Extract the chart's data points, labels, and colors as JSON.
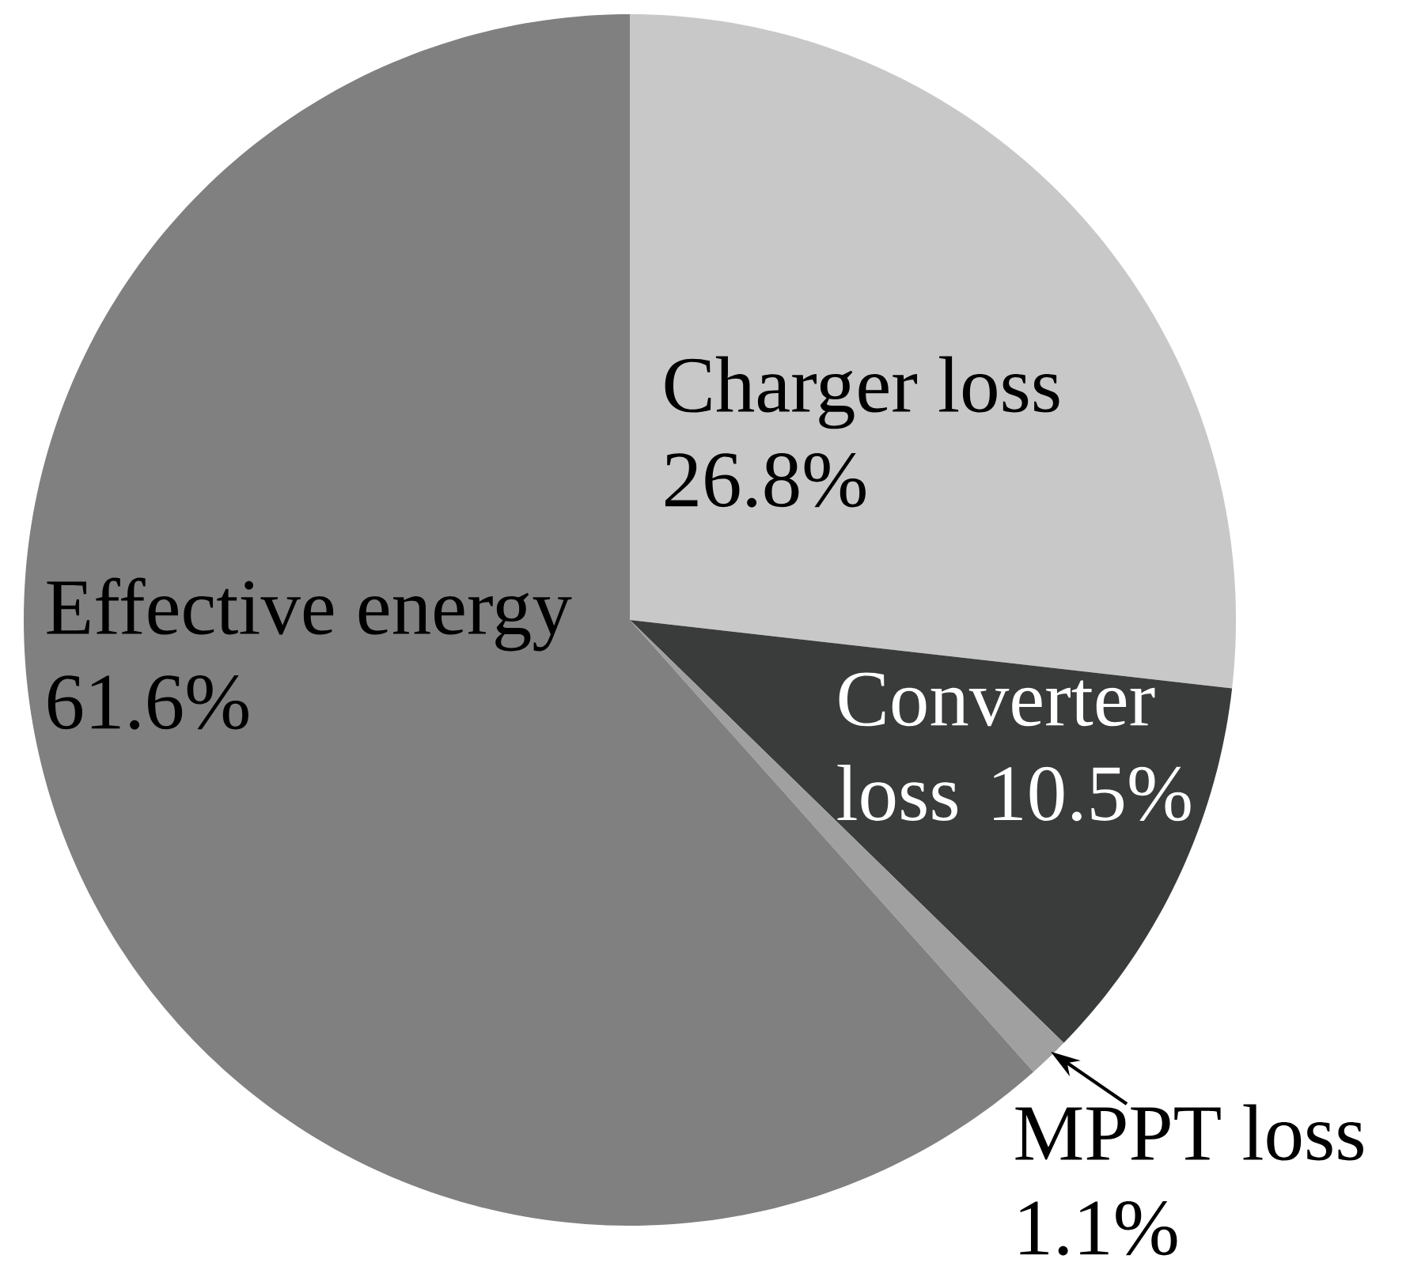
{
  "chart_data": {
    "type": "pie",
    "categories": [
      "Charger loss",
      "Converter loss",
      "MPPT loss",
      "Effective energy"
    ],
    "values": [
      26.8,
      10.5,
      1.1,
      61.6
    ],
    "value_labels": [
      "26.8%",
      "10.5%",
      "1.1%",
      "61.6%"
    ],
    "colors": [
      "#c8c8c8",
      "#3a3b3b",
      "#a0a0a0",
      "#808080"
    ]
  }
}
